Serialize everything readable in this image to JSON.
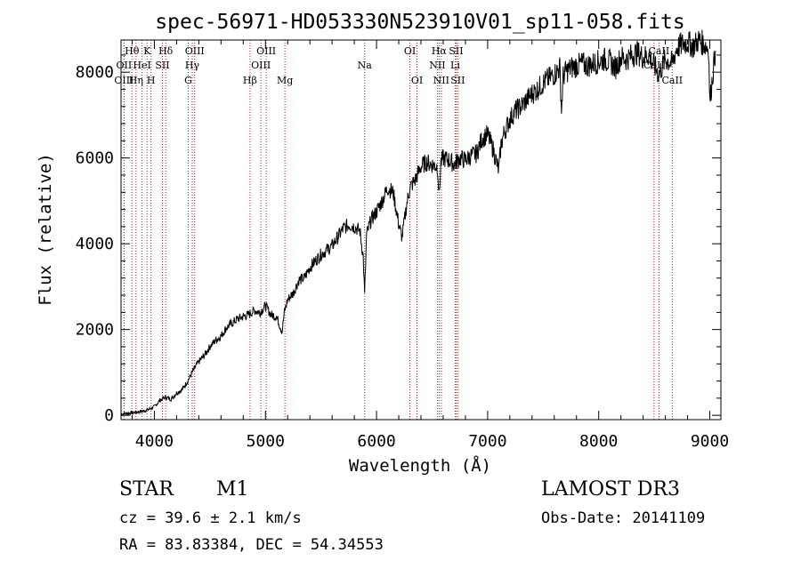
{
  "chart_data": {
    "type": "line",
    "title": "spec-56971-HD053330N523910V01_sp11-058.fits",
    "xlabel": "Wavelength (Å)",
    "ylabel": "Flux (relative)",
    "xlim": [
      3700,
      9100
    ],
    "ylim": [
      -100,
      8750
    ],
    "xticks": [
      4000,
      5000,
      6000,
      7000,
      8000,
      9000
    ],
    "yticks": [
      0,
      2000,
      4000,
      6000,
      8000
    ],
    "series": [
      {
        "name": "spectrum",
        "x": [
          3700,
          3800,
          3900,
          3950,
          4000,
          4050,
          4100,
          4150,
          4200,
          4250,
          4300,
          4350,
          4400,
          4450,
          4500,
          4550,
          4600,
          4650,
          4700,
          4750,
          4800,
          4850,
          4900,
          4950,
          5000,
          5050,
          5100,
          5150,
          5170,
          5200,
          5250,
          5300,
          5350,
          5400,
          5450,
          5500,
          5550,
          5600,
          5650,
          5700,
          5750,
          5800,
          5850,
          5880,
          5893,
          5910,
          5950,
          6000,
          6050,
          6100,
          6150,
          6200,
          6230,
          6270,
          6300,
          6350,
          6400,
          6450,
          6500,
          6550,
          6563,
          6580,
          6600,
          6650,
          6700,
          6750,
          6800,
          6850,
          6900,
          6950,
          7000,
          7050,
          7080,
          7100,
          7120,
          7150,
          7200,
          7250,
          7300,
          7350,
          7400,
          7450,
          7500,
          7550,
          7600,
          7650,
          7665,
          7680,
          7700,
          7750,
          7800,
          7850,
          7900,
          7950,
          8000,
          8050,
          8100,
          8150,
          8200,
          8250,
          8300,
          8350,
          8400,
          8450,
          8500,
          8542,
          8600,
          8662,
          8700,
          8750,
          8800,
          8850,
          8900,
          8950,
          8990,
          9000,
          9050
        ],
        "values": [
          30,
          60,
          100,
          140,
          200,
          350,
          420,
          380,
          520,
          600,
          800,
          1050,
          1250,
          1400,
          1600,
          1750,
          1850,
          2050,
          2150,
          2250,
          2300,
          2350,
          2450,
          2400,
          2550,
          2350,
          2300,
          1950,
          2400,
          2700,
          2850,
          3150,
          3200,
          3450,
          3600,
          3750,
          3850,
          3950,
          4150,
          4350,
          4450,
          4400,
          4300,
          3700,
          2800,
          4200,
          4550,
          4750,
          5000,
          5300,
          5200,
          4450,
          4150,
          4900,
          5300,
          5500,
          5800,
          5900,
          5850,
          5800,
          5100,
          5900,
          6000,
          5950,
          5850,
          6000,
          5950,
          6050,
          6100,
          6450,
          6550,
          6200,
          5900,
          5700,
          6300,
          6600,
          6900,
          7100,
          7200,
          7350,
          7500,
          7600,
          7750,
          7850,
          7950,
          8100,
          7100,
          7900,
          8000,
          8100,
          8150,
          8200,
          8150,
          8200,
          8250,
          8300,
          8250,
          8100,
          8350,
          8300,
          8400,
          8450,
          8350,
          8400,
          8150,
          7950,
          8300,
          8200,
          8550,
          8650,
          8700,
          8600,
          8750,
          8650,
          8550,
          7300,
          8500
        ]
      }
    ],
    "lines": [
      {
        "label": "Hθ",
        "x": 3798,
        "row": 0
      },
      {
        "label": "OII",
        "x": 3727,
        "row": 1
      },
      {
        "label": "OIII",
        "x": 3727,
        "row": 2
      },
      {
        "label": "Hη",
        "x": 3835,
        "row": 2
      },
      {
        "label": "K",
        "x": 3934,
        "row": 0
      },
      {
        "label": "HeI",
        "x": 3889,
        "row": 1
      },
      {
        "label": "H",
        "x": 3970,
        "row": 2
      },
      {
        "label": "SII",
        "x": 4072,
        "row": 1
      },
      {
        "label": "Hδ",
        "x": 4102,
        "row": 0
      },
      {
        "label": "OIII",
        "x": 4363,
        "row": 0
      },
      {
        "label": "Hγ",
        "x": 4341,
        "row": 1
      },
      {
        "label": "G",
        "x": 4305,
        "row": 2
      },
      {
        "label": "OIII",
        "x": 5007,
        "row": 0
      },
      {
        "label": "OIII",
        "x": 4959,
        "row": 1
      },
      {
        "label": "Hβ",
        "x": 4861,
        "row": 2
      },
      {
        "label": "Mg",
        "x": 5175,
        "row": 2
      },
      {
        "label": "Na",
        "x": 5893,
        "row": 1
      },
      {
        "label": "OI",
        "x": 6300,
        "row": 0
      },
      {
        "label": "OI",
        "x": 6364,
        "row": 2
      },
      {
        "label": "Hα",
        "x": 6563,
        "row": 0
      },
      {
        "label": "NII",
        "x": 6548,
        "row": 1
      },
      {
        "label": "NII",
        "x": 6583,
        "row": 2
      },
      {
        "label": "SII",
        "x": 6716,
        "row": 0
      },
      {
        "label": "Li",
        "x": 6708,
        "row": 1
      },
      {
        "label": "SII",
        "x": 6731,
        "row": 2
      },
      {
        "label": "CaII",
        "x": 8542,
        "row": 0
      },
      {
        "label": "CaII",
        "x": 8498,
        "row": 1
      },
      {
        "label": "CaII",
        "x": 8662,
        "row": 2
      }
    ]
  },
  "info": {
    "object_class": "STAR",
    "subclass": "M1",
    "survey": "LAMOST DR3",
    "cz": "cz = 39.6 ± 2.1 km/s",
    "obs_date": "Obs-Date: 20141109",
    "coords": "RA =  83.83384, DEC =  54.34553"
  },
  "colors": {
    "spectrum": "#000000",
    "line_marker": "#b22222",
    "axis": "#000000"
  }
}
